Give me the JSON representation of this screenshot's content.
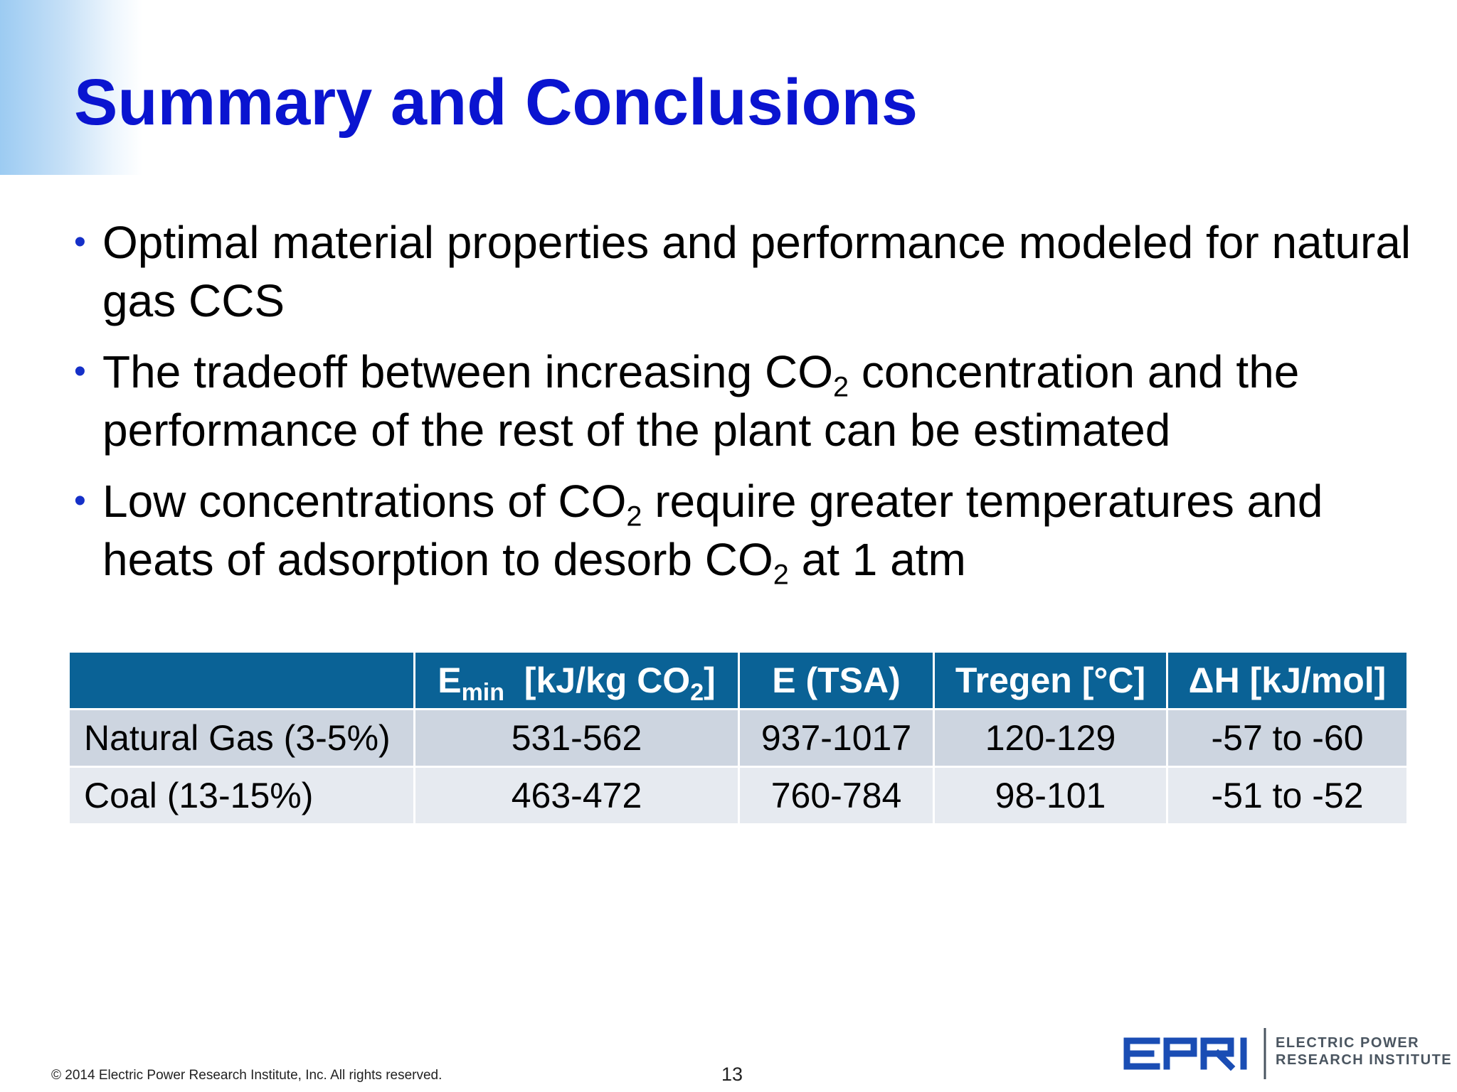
{
  "slide": {
    "title": "Summary and Conclusions",
    "bullets": [
      {
        "text_parts": [
          "Optimal material properties and performance modeled for natural gas CCS"
        ]
      },
      {
        "text_parts": [
          "The tradeoff between increasing CO",
          "2",
          " concentration and the performance of the rest of the plant can be estimated"
        ]
      },
      {
        "text_parts": [
          "Low concentrations of CO",
          "2",
          " require greater temperatures and heats of adsorption to desorb CO",
          "2",
          " at 1 atm"
        ]
      }
    ]
  },
  "table": {
    "headers": [
      {
        "main": "",
        "sub": "",
        "rest": "",
        "sub2": "",
        "end": ""
      },
      {
        "main": "E",
        "sub": "min",
        "rest": "  [kJ/kg CO",
        "sub2": "2",
        "end": "]"
      },
      {
        "main": "E (TSA)",
        "sub": "",
        "rest": "",
        "sub2": "",
        "end": ""
      },
      {
        "main": "Tregen [°C]",
        "sub": "",
        "rest": "",
        "sub2": "",
        "end": ""
      },
      {
        "main": "ΔH [kJ/mol]",
        "sub": "",
        "rest": "",
        "sub2": "",
        "end": ""
      }
    ],
    "rows": [
      {
        "label": "Natural Gas (3-5%)",
        "cells": [
          "531-562",
          "937-1017",
          "120-129",
          "-57 to -60"
        ]
      },
      {
        "label": "Coal (13-15%)",
        "cells": [
          "463-472",
          "760-784",
          "98-101",
          "-51 to -52"
        ]
      }
    ]
  },
  "footer": {
    "copyright": "© 2014 Electric Power Research Institute, Inc. All rights reserved.",
    "page_number": "13"
  },
  "logo": {
    "line1": "ELECTRIC POWER",
    "line2": "RESEARCH INSTITUTE",
    "mark_label": "EPRI"
  },
  "colors": {
    "title": "#0a14d0",
    "bullet_dot": "#1530c8",
    "table_header": "#0a6296",
    "row_dark": "#cdd5e0",
    "row_light": "#e6eaf0",
    "logo_blue": "#1a4db4"
  }
}
